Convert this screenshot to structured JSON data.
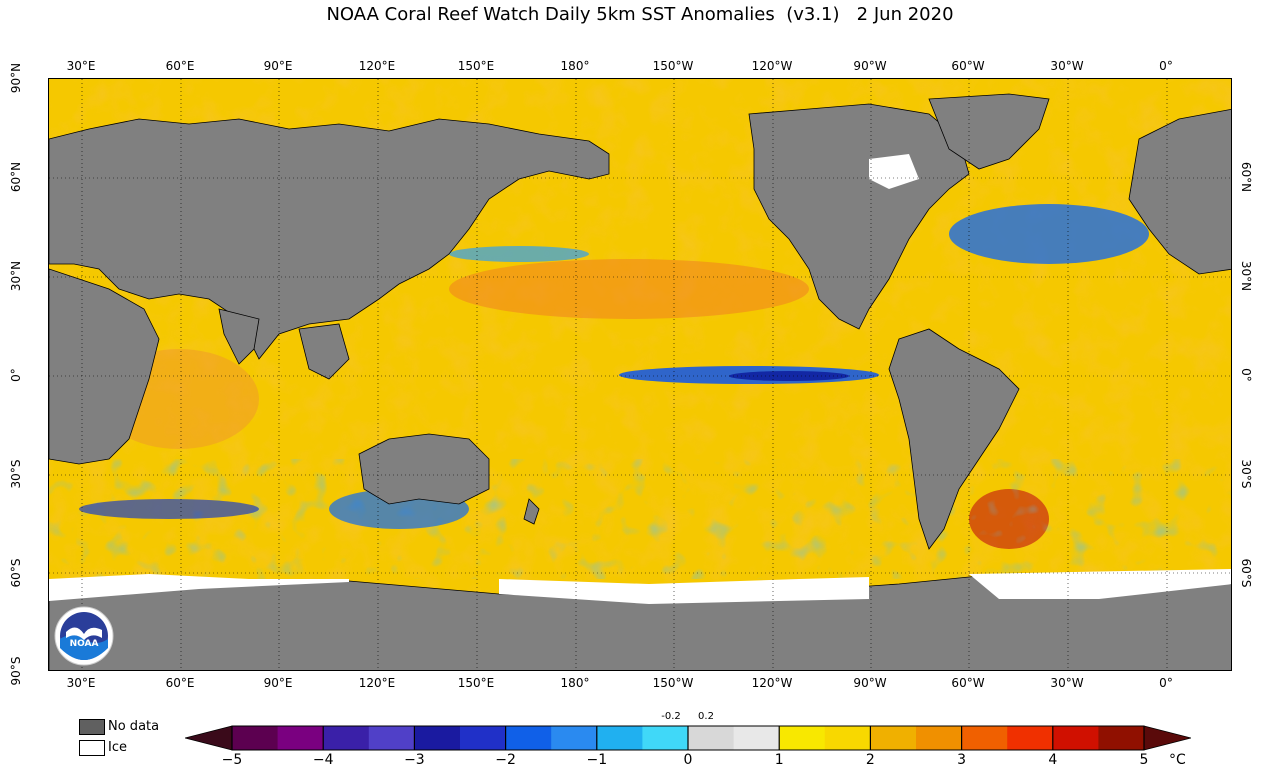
{
  "title": "NOAA Coral Reef Watch Daily 5km SST Anomalies  (v3.1)   2 Jun 2020",
  "lon_labels": [
    "30°E",
    "60°E",
    "90°E",
    "120°E",
    "150°E",
    "180°",
    "150°W",
    "120°W",
    "90°W",
    "60°W",
    "30°W",
    "0°"
  ],
  "lat_labels_left": [
    "90°N",
    "60°N",
    "30°N",
    "0°",
    "30°S",
    "60°S",
    "90°S"
  ],
  "lat_labels_right": [
    "60°N",
    "30°N",
    "0°",
    "30°S",
    "60°S"
  ],
  "legend": {
    "no_data": "No data",
    "ice": "Ice"
  },
  "colorbar": {
    "ticks": [
      "−5",
      "−4",
      "−3",
      "−2",
      "−1",
      "0",
      "1",
      "2",
      "3",
      "4",
      "5"
    ],
    "small_ticks": [
      "-0.2",
      "0.2"
    ],
    "unit": "°C",
    "colors": [
      "#3a0a1a",
      "#5c0050",
      "#7a0080",
      "#3a20a8",
      "#5040c8",
      "#1a1aa0",
      "#2030c8",
      "#1060e8",
      "#2a8af0",
      "#20b0f0",
      "#40d8f8",
      "#d8d8d8",
      "#e8e8e8",
      "#f8e800",
      "#f8d800",
      "#f0b000",
      "#f09000",
      "#f06000",
      "#f03000",
      "#d01000",
      "#901000",
      "#5a0a0a"
    ]
  },
  "colors": {
    "land": "#808080",
    "ice": "#ffffff",
    "ocean_base": "#f5c800"
  },
  "logo_text": "NOAA"
}
